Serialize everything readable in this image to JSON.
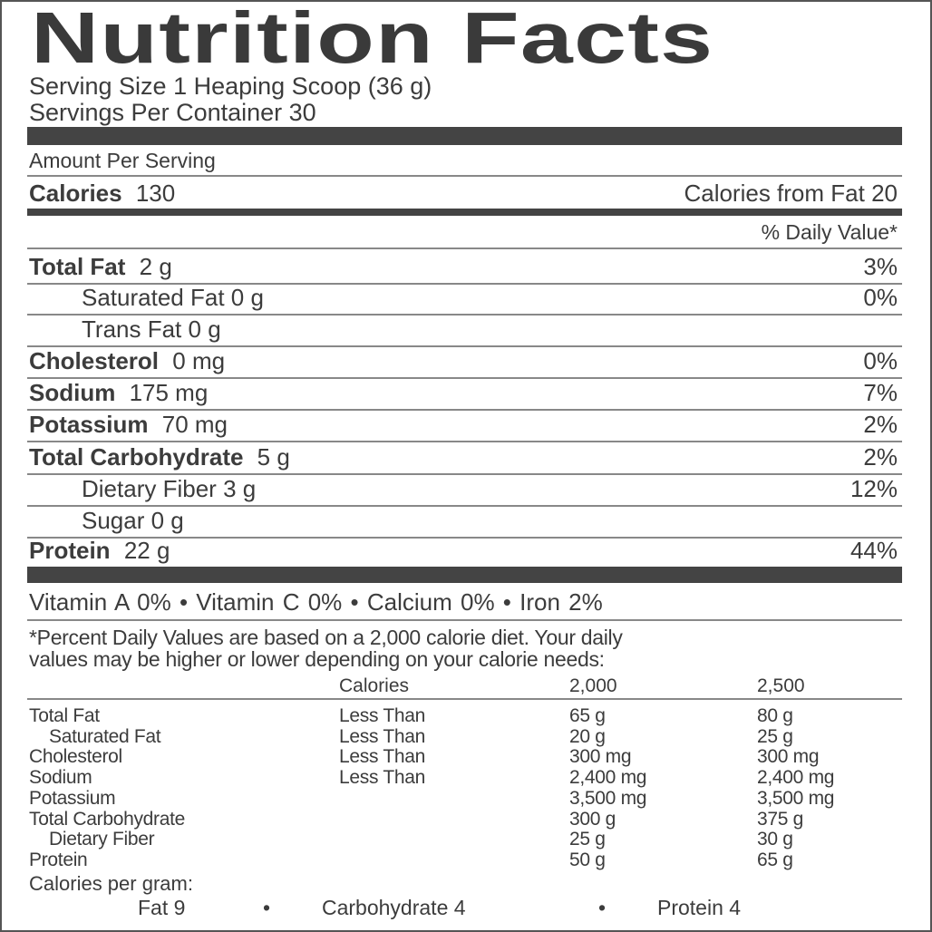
{
  "title": "Nutrition Facts",
  "serving_size": "Serving Size 1 Heaping Scoop (36 g)",
  "servings_per_container": "Servings Per Container 30",
  "amount_per_serving": "Amount Per Serving",
  "calories": {
    "label": "Calories",
    "value": "130",
    "from_fat_label": "Calories from Fat",
    "from_fat_value": "20"
  },
  "daily_value_header": "% Daily Value*",
  "nutrients": [
    {
      "label": "Total Fat",
      "amount": "2 g",
      "dv": "3%"
    },
    {
      "label": "Saturated Fat",
      "amount": "0 g",
      "dv": "0%"
    },
    {
      "label": "Trans Fat",
      "amount": "0 g",
      "dv": ""
    },
    {
      "label": "Cholesterol",
      "amount": "0 mg",
      "dv": "0%"
    },
    {
      "label": "Sodium",
      "amount": "175 mg",
      "dv": "7%"
    },
    {
      "label": "Potassium",
      "amount": "70 mg",
      "dv": "2%"
    },
    {
      "label": "Total Carbohydrate",
      "amount": "5 g",
      "dv": "2%"
    },
    {
      "label": "Dietary Fiber",
      "amount": "3 g",
      "dv": "12%"
    },
    {
      "label": "Sugar",
      "amount": "0 g",
      "dv": ""
    },
    {
      "label": "Protein",
      "amount": "22 g",
      "dv": "44%"
    }
  ],
  "vitamins": "Vitamin A 0% • Vitamin C 0% • Calcium 0% • Iron 2%",
  "footnote": [
    "*Percent Daily Values are based on a 2,000 calorie diet. Your daily",
    "values may be higher or lower depending on your calorie needs:"
  ],
  "dv_table": {
    "header": [
      "",
      "Calories",
      "2,000",
      "2,500"
    ],
    "rows": [
      [
        "Total Fat",
        "Less Than",
        "65 g",
        "80 g"
      ],
      [
        "Saturated Fat",
        "Less Than",
        "20 g",
        "25 g"
      ],
      [
        "Cholesterol",
        "Less Than",
        "300 mg",
        "300 mg"
      ],
      [
        "Sodium",
        "Less Than",
        "2,400 mg",
        "2,400 mg"
      ],
      [
        "Potassium",
        "",
        "3,500 mg",
        "3,500 mg"
      ],
      [
        "Total Carbohydrate",
        "",
        "300 g",
        "375 g"
      ],
      [
        "Dietary Fiber",
        "",
        "25 g",
        "30 g"
      ],
      [
        "Protein",
        "",
        "50 g",
        "65 g"
      ]
    ]
  },
  "calories_per_gram": {
    "label": "Calories per gram:",
    "fat": "Fat 9",
    "carb": "Carbohydrate 4",
    "protein": "Protein 4",
    "sep": "•"
  }
}
